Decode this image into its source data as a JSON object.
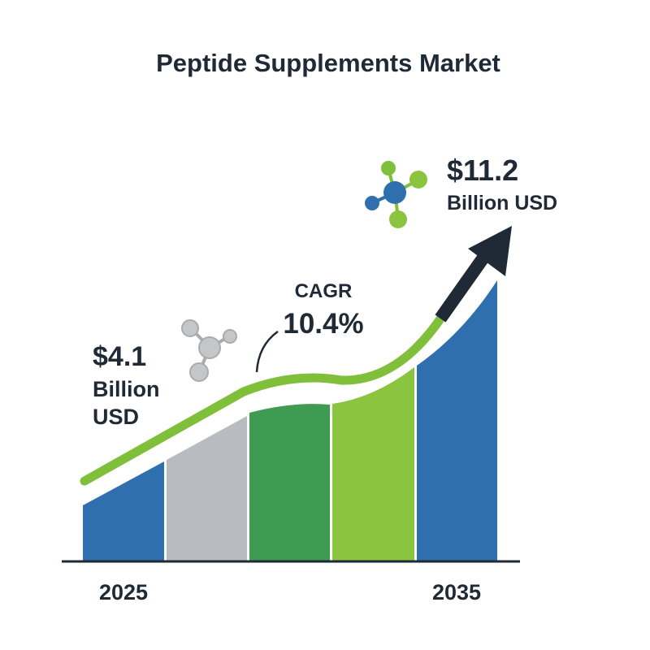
{
  "title": "Peptide Supplements Market",
  "start": {
    "amount": "$4.1",
    "unit_line1": "Billion",
    "unit_line2": "USD",
    "year": "2025"
  },
  "cagr": {
    "label": "CAGR",
    "value": "10.4%"
  },
  "end": {
    "amount": "$11.2",
    "unit": "Billion USD",
    "year": "2035"
  }
}
